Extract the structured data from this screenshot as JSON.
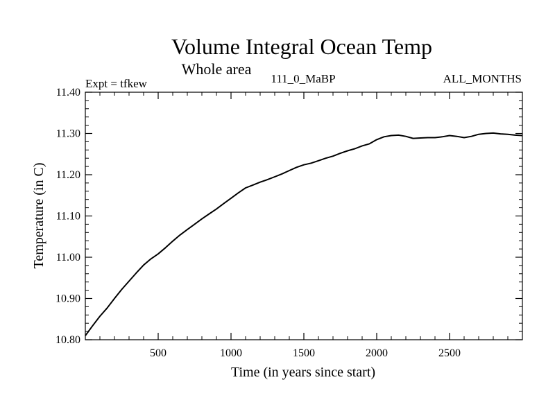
{
  "chart_data": {
    "type": "line",
    "title": "Volume Integral Ocean Temp",
    "subtitle": "Whole area",
    "left_label": "Expt = tfkew",
    "center_label": "111_0_MaBP",
    "right_label": "ALL_MONTHS",
    "xlabel": "Time (in years since start)",
    "ylabel": "Temperature (in C)",
    "xlim": [
      0,
      3000
    ],
    "ylim": [
      10.8,
      11.4
    ],
    "xticks": [
      500,
      1000,
      1500,
      2000,
      2500
    ],
    "xtick_labels": [
      "500",
      "1000",
      "1500",
      "2000",
      "2500"
    ],
    "yticks": [
      10.8,
      10.9,
      11.0,
      11.1,
      11.2,
      11.3,
      11.4
    ],
    "ytick_labels": [
      "10.80",
      "10.90",
      "11.00",
      "11.10",
      "11.20",
      "11.30",
      "11.40"
    ],
    "grid": false,
    "series": [
      {
        "color": "#000000",
        "x": [
          0,
          50,
          100,
          150,
          200,
          250,
          300,
          350,
          400,
          450,
          500,
          550,
          600,
          650,
          700,
          750,
          800,
          850,
          900,
          950,
          1000,
          1050,
          1100,
          1150,
          1200,
          1250,
          1300,
          1350,
          1400,
          1450,
          1500,
          1550,
          1600,
          1650,
          1700,
          1750,
          1800,
          1850,
          1900,
          1950,
          2000,
          2050,
          2100,
          2150,
          2200,
          2250,
          2300,
          2350,
          2400,
          2450,
          2500,
          2550,
          2600,
          2650,
          2700,
          2750,
          2800,
          2850,
          2900,
          2950,
          3000
        ],
        "y": [
          10.81,
          10.834,
          10.857,
          10.877,
          10.9,
          10.922,
          10.942,
          10.962,
          10.981,
          10.996,
          11.008,
          11.023,
          11.039,
          11.054,
          11.067,
          11.08,
          11.093,
          11.105,
          11.117,
          11.13,
          11.143,
          11.156,
          11.168,
          11.175,
          11.182,
          11.188,
          11.195,
          11.202,
          11.21,
          11.218,
          11.224,
          11.228,
          11.234,
          11.24,
          11.245,
          11.252,
          11.258,
          11.263,
          11.27,
          11.275,
          11.285,
          11.292,
          11.295,
          11.296,
          11.293,
          11.288,
          11.289,
          11.29,
          11.29,
          11.292,
          11.295,
          11.293,
          11.29,
          11.293,
          11.298,
          11.3,
          11.301,
          11.299,
          11.298,
          11.296,
          11.295
        ]
      }
    ]
  }
}
